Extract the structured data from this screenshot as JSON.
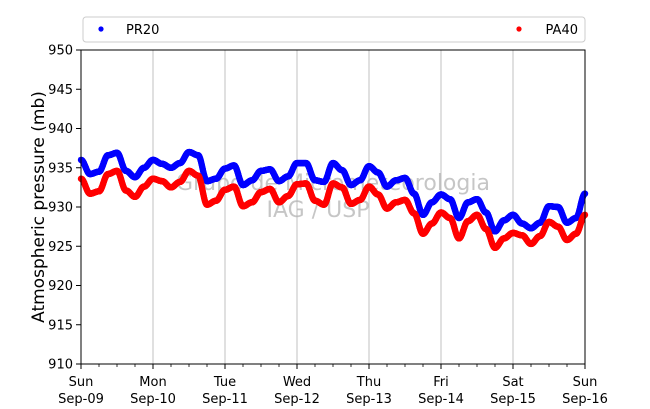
{
  "chart_data": {
    "type": "scatter",
    "ylabel": "Atmospheric pressure (mb)",
    "xlabel": "",
    "ylim": [
      910,
      950
    ],
    "yticks": [
      910,
      915,
      920,
      925,
      930,
      935,
      940,
      945,
      950
    ],
    "xlim": [
      "2018-09-09",
      "2018-09-16"
    ],
    "xticks": [
      {
        "date": "2018-09-09",
        "line1": "Sun",
        "line2": "Sep-09"
      },
      {
        "date": "2018-09-10",
        "line1": "Mon",
        "line2": "Sep-10"
      },
      {
        "date": "2018-09-11",
        "line1": "Tue",
        "line2": "Sep-11"
      },
      {
        "date": "2018-09-12",
        "line1": "Wed",
        "line2": "Sep-12"
      },
      {
        "date": "2018-09-13",
        "line1": "Thu",
        "line2": "Sep-13"
      },
      {
        "date": "2018-09-14",
        "line1": "Fri",
        "line2": "Sep-14"
      },
      {
        "date": "2018-09-15",
        "line1": "Sat",
        "line2": "Sep-15"
      },
      {
        "date": "2018-09-16",
        "line1": "Sun",
        "line2": "Sep-16"
      }
    ],
    "grid": "vertical",
    "legend_position": "top",
    "watermark": [
      "Grupo de Micrometeorologia",
      "IAG / USP"
    ],
    "series": [
      {
        "name": "PR20",
        "color": "#0000ff",
        "x": [
          "2018-09-09 00:00",
          "2018-09-09 03:00",
          "2018-09-09 06:00",
          "2018-09-09 09:00",
          "2018-09-09 12:00",
          "2018-09-09 15:00",
          "2018-09-09 18:00",
          "2018-09-09 21:00",
          "2018-09-10 00:00",
          "2018-09-10 03:00",
          "2018-09-10 06:00",
          "2018-09-10 09:00",
          "2018-09-10 12:00",
          "2018-09-10 15:00",
          "2018-09-10 18:00",
          "2018-09-10 21:00",
          "2018-09-11 00:00",
          "2018-09-11 03:00",
          "2018-09-11 06:00",
          "2018-09-11 09:00",
          "2018-09-11 12:00",
          "2018-09-11 15:00",
          "2018-09-11 18:00",
          "2018-09-11 21:00",
          "2018-09-12 00:00",
          "2018-09-12 03:00",
          "2018-09-12 06:00",
          "2018-09-12 09:00",
          "2018-09-12 12:00",
          "2018-09-12 15:00",
          "2018-09-12 18:00",
          "2018-09-12 21:00",
          "2018-09-13 00:00",
          "2018-09-13 03:00",
          "2018-09-13 06:00",
          "2018-09-13 09:00",
          "2018-09-13 12:00",
          "2018-09-13 15:00",
          "2018-09-13 18:00",
          "2018-09-13 21:00",
          "2018-09-14 00:00",
          "2018-09-14 03:00",
          "2018-09-14 06:00",
          "2018-09-14 09:00",
          "2018-09-14 12:00",
          "2018-09-14 15:00",
          "2018-09-14 18:00",
          "2018-09-14 21:00",
          "2018-09-15 00:00",
          "2018-09-15 03:00",
          "2018-09-15 06:00",
          "2018-09-15 09:00",
          "2018-09-15 12:00",
          "2018-09-15 15:00",
          "2018-09-15 18:00",
          "2018-09-15 21:00",
          "2018-09-16 00:00"
        ],
        "y": [
          936.0,
          934.2,
          934.5,
          936.6,
          936.9,
          934.6,
          933.8,
          935.0,
          936.0,
          935.5,
          935.0,
          935.6,
          937.0,
          936.6,
          933.3,
          933.6,
          934.9,
          935.3,
          932.8,
          933.4,
          934.6,
          934.8,
          933.3,
          933.9,
          935.6,
          935.6,
          933.4,
          933.2,
          935.6,
          934.7,
          932.8,
          933.4,
          935.2,
          934.4,
          932.6,
          933.4,
          933.7,
          931.7,
          929.0,
          930.6,
          931.6,
          931.0,
          928.6,
          930.6,
          931.0,
          929.3,
          926.9,
          928.3,
          929.0,
          927.9,
          927.3,
          928.0,
          930.1,
          930.0,
          928.0,
          928.6,
          931.7
        ]
      },
      {
        "name": "PA40",
        "color": "#ff0000",
        "x": [
          "2018-09-09 00:00",
          "2018-09-09 03:00",
          "2018-09-09 06:00",
          "2018-09-09 09:00",
          "2018-09-09 12:00",
          "2018-09-09 15:00",
          "2018-09-09 18:00",
          "2018-09-09 21:00",
          "2018-09-10 00:00",
          "2018-09-10 03:00",
          "2018-09-10 06:00",
          "2018-09-10 09:00",
          "2018-09-10 12:00",
          "2018-09-10 15:00",
          "2018-09-10 18:00",
          "2018-09-10 21:00",
          "2018-09-11 00:00",
          "2018-09-11 03:00",
          "2018-09-11 06:00",
          "2018-09-11 09:00",
          "2018-09-11 12:00",
          "2018-09-11 15:00",
          "2018-09-11 18:00",
          "2018-09-11 21:00",
          "2018-09-12 00:00",
          "2018-09-12 03:00",
          "2018-09-12 06:00",
          "2018-09-12 09:00",
          "2018-09-12 12:00",
          "2018-09-12 15:00",
          "2018-09-12 18:00",
          "2018-09-12 21:00",
          "2018-09-13 00:00",
          "2018-09-13 03:00",
          "2018-09-13 06:00",
          "2018-09-13 09:00",
          "2018-09-13 12:00",
          "2018-09-13 15:00",
          "2018-09-13 18:00",
          "2018-09-13 21:00",
          "2018-09-14 00:00",
          "2018-09-14 03:00",
          "2018-09-14 06:00",
          "2018-09-14 09:00",
          "2018-09-14 12:00",
          "2018-09-14 15:00",
          "2018-09-14 18:00",
          "2018-09-14 21:00",
          "2018-09-15 00:00",
          "2018-09-15 03:00",
          "2018-09-15 06:00",
          "2018-09-15 09:00",
          "2018-09-15 12:00",
          "2018-09-15 15:00",
          "2018-09-15 18:00",
          "2018-09-15 21:00",
          "2018-09-16 00:00"
        ],
        "y": [
          933.6,
          931.7,
          932.0,
          934.2,
          934.6,
          932.1,
          931.3,
          932.6,
          933.6,
          933.3,
          932.5,
          933.2,
          934.6,
          934.0,
          930.3,
          930.8,
          932.2,
          932.6,
          930.1,
          930.6,
          931.9,
          932.3,
          930.6,
          931.4,
          932.9,
          933.0,
          930.8,
          930.3,
          933.0,
          932.5,
          930.4,
          930.9,
          932.6,
          931.6,
          929.8,
          930.6,
          930.9,
          929.2,
          926.6,
          927.9,
          929.3,
          928.6,
          926.0,
          928.2,
          929.0,
          927.2,
          924.8,
          926.0,
          926.7,
          926.4,
          925.3,
          926.3,
          928.1,
          927.5,
          925.8,
          926.6,
          929.0
        ]
      }
    ]
  }
}
